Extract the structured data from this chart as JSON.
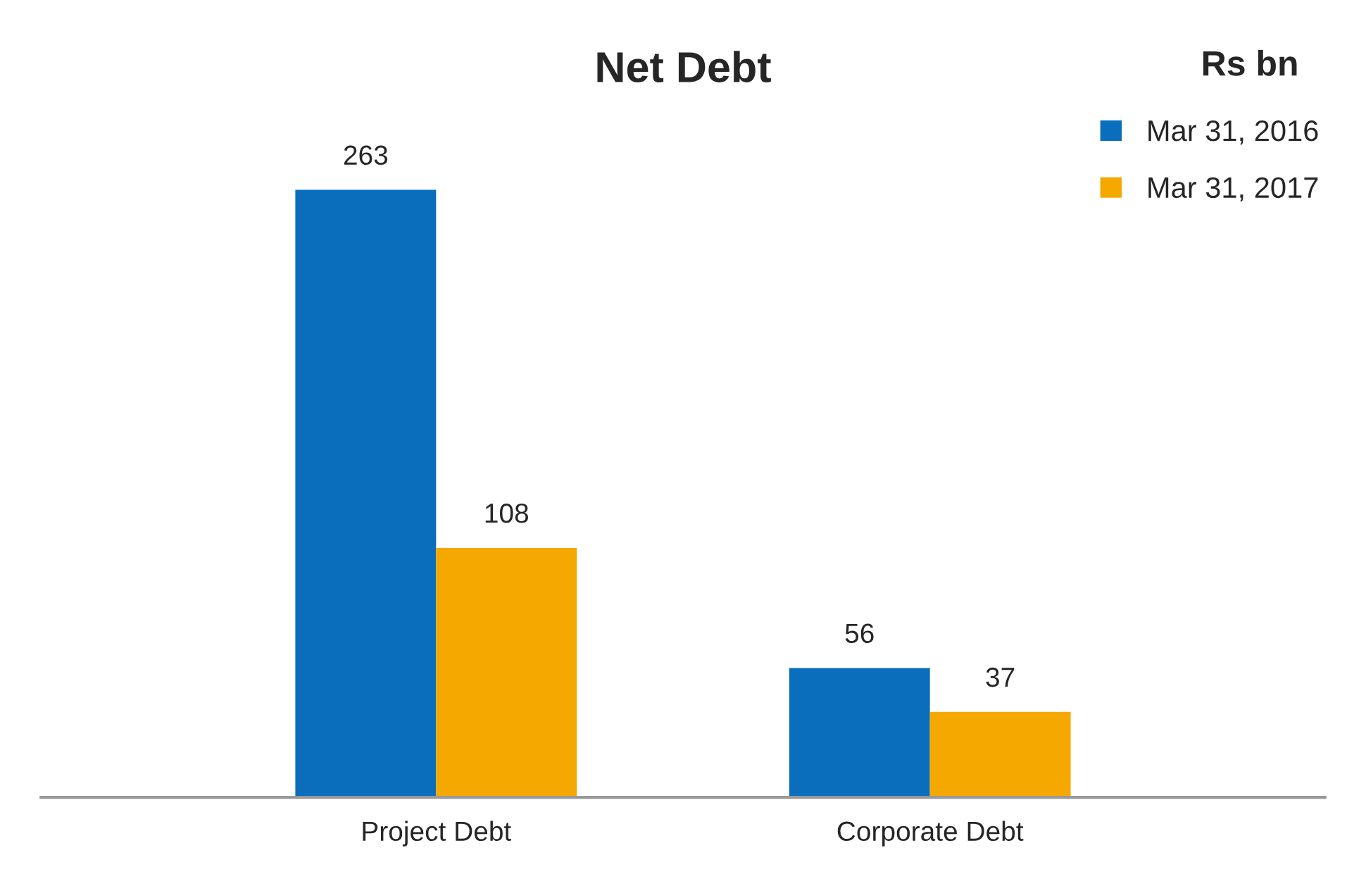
{
  "chart_data": {
    "type": "bar",
    "title": "Net Debt",
    "subtitle": "Rs bn",
    "categories": [
      "Project Debt",
      "Corporate Debt"
    ],
    "series": [
      {
        "name": "Mar 31, 2016",
        "color": "#0a6ebd",
        "values": [
          263,
          56
        ]
      },
      {
        "name": "Mar 31, 2017",
        "color": "#f5a800",
        "values": [
          108,
          37
        ]
      }
    ],
    "data_labels": true,
    "legend": "top right",
    "grid": false
  }
}
